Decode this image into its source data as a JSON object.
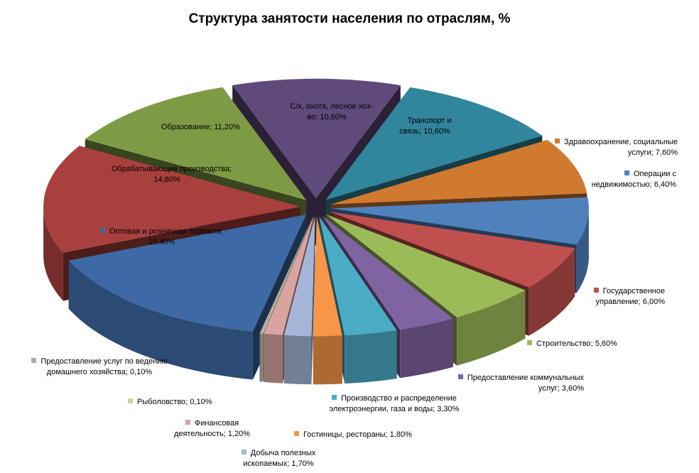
{
  "chart_data": {
    "type": "pie",
    "style": "3d-exploded",
    "title": "Структура занятости населения по отраслям, %",
    "unit": "%",
    "slices": [
      {
        "label": "С/х, охота, лесное хоз-во",
        "value": 10.6,
        "value_text": "10,60%",
        "color": "#604a7b"
      },
      {
        "label": "Транспорт и связь",
        "value": 10.6,
        "value_text": "10,60%",
        "color": "#31859c"
      },
      {
        "label": "Здравоохранение, социальные услуги",
        "value": 7.6,
        "value_text": "7,60%",
        "color": "#d07a30"
      },
      {
        "label": "Операции с недвижимостью",
        "value": 6.4,
        "value_text": "6,40%",
        "color": "#4f81bd"
      },
      {
        "label": "Государственное управление",
        "value": 6.0,
        "value_text": "6,00%",
        "color": "#c0504d"
      },
      {
        "label": "Строительство",
        "value": 5.6,
        "value_text": "5,60%",
        "color": "#9bbb59"
      },
      {
        "label": "Предоставление коммунальных услуг",
        "value": 3.6,
        "value_text": "3,60%",
        "color": "#8064a2"
      },
      {
        "label": "Производство и распределение электроэнергии, газа и воды",
        "value": 3.3,
        "value_text": "3,30%",
        "color": "#4bacc6"
      },
      {
        "label": "Гостиницы, рестораны",
        "value": 1.8,
        "value_text": "1,80%",
        "color": "#f79646"
      },
      {
        "label": "Добыча полезных ископаемых",
        "value": 1.7,
        "value_text": "1,70%",
        "color": "#a5b5d8"
      },
      {
        "label": "Финансовая деятельность",
        "value": 1.2,
        "value_text": "1,20%",
        "color": "#d9a3a2"
      },
      {
        "label": "Рыболовство",
        "value": 0.1,
        "value_text": "0,10%",
        "color": "#c4d79b"
      },
      {
        "label": "Предоставление услуг по ведению домашнего хозяйства",
        "value": 0.1,
        "value_text": "0,10%",
        "color": "#b3a2c7"
      },
      {
        "label": "Оптовая и розничная торговля",
        "value": 15.4,
        "value_text": "15,40%",
        "color": "#3d6aa6"
      },
      {
        "label": "Обрабатывающие производства",
        "value": 14.8,
        "value_text": "14,80%",
        "color": "#a8403d"
      },
      {
        "label": "Образование",
        "value": 11.2,
        "value_text": "11,20%",
        "color": "#7f9a45"
      }
    ]
  }
}
